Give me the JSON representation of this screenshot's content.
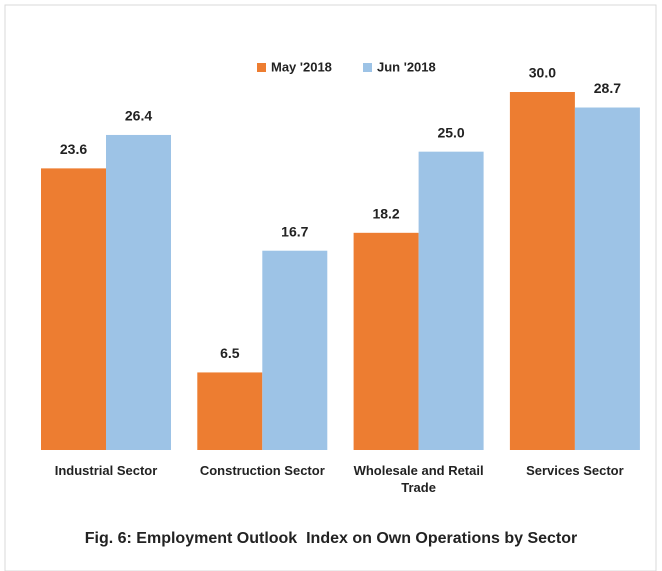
{
  "chart_data": {
    "type": "bar",
    "title": "Fig. 6: Employment Outlook  Index on Own Operations by Sector",
    "categories": [
      "Industrial Sector",
      "Construction Sector",
      "Wholesale and Retail Trade",
      "Services Sector"
    ],
    "series": [
      {
        "name": "May '2018",
        "color": "#ed7d31",
        "values": [
          23.6,
          6.5,
          18.2,
          30.0
        ],
        "value_labels": [
          "23.6",
          "6.5",
          "18.2",
          "30.0"
        ]
      },
      {
        "name": "Jun '2018",
        "color": "#9dc3e6",
        "values": [
          26.4,
          16.7,
          25.0,
          28.7
        ],
        "value_labels": [
          "26.4",
          "16.7",
          "25.0",
          "28.7"
        ]
      }
    ],
    "legend": "top"
  }
}
